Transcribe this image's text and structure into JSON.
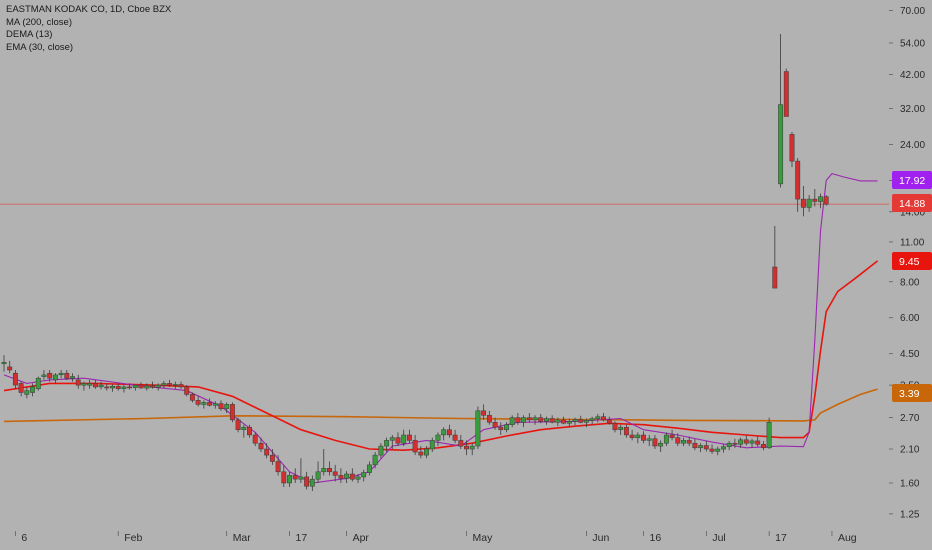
{
  "legend": {
    "title": "EASTMAN KODAK CO, 1D, Cboe BZX",
    "ma": "MA (200, close)",
    "dema": "DEMA (13)",
    "ema": "EMA (30, close)"
  },
  "colors": {
    "background": "#b2b2b2",
    "up": "#3a9a3e",
    "down": "#d32f2f",
    "ma": "#c8660a",
    "dema": "#9c27b0",
    "ema": "#e8150e",
    "last_price": "#e53935"
  },
  "chart_data": {
    "type": "candlestick",
    "scale": "log",
    "ylim": [
      1.2,
      72
    ],
    "y_ticks": [
      "70.00",
      "54.00",
      "42.00",
      "32.00",
      "24.00",
      "18.00",
      "14.00",
      "11.00",
      "8.00",
      "6.00",
      "4.50",
      "3.50",
      "2.70",
      "2.10",
      "1.60",
      "1.25"
    ],
    "x_ticks": [
      {
        "label": "6",
        "index": 2
      },
      {
        "label": "Feb",
        "index": 20
      },
      {
        "label": "Mar",
        "index": 39
      },
      {
        "label": "17",
        "index": 50
      },
      {
        "label": "Apr",
        "index": 60
      },
      {
        "label": "May",
        "index": 81
      },
      {
        "label": "Jun",
        "index": 102
      },
      {
        "label": "16",
        "index": 112
      },
      {
        "label": "Jul",
        "index": 123
      },
      {
        "label": "17",
        "index": 134
      },
      {
        "label": "Aug",
        "index": 145
      }
    ],
    "candles": [
      [
        4.15,
        4.45,
        3.9,
        4.2
      ],
      [
        4.05,
        4.25,
        3.85,
        3.95
      ],
      [
        3.85,
        3.95,
        3.4,
        3.5
      ],
      [
        3.55,
        3.6,
        3.2,
        3.3
      ],
      [
        3.25,
        3.45,
        3.15,
        3.35
      ],
      [
        3.3,
        3.55,
        3.2,
        3.45
      ],
      [
        3.4,
        3.75,
        3.35,
        3.7
      ],
      [
        3.75,
        3.95,
        3.65,
        3.8
      ],
      [
        3.85,
        3.95,
        3.6,
        3.7
      ],
      [
        3.65,
        3.85,
        3.55,
        3.8
      ],
      [
        3.8,
        3.95,
        3.7,
        3.85
      ],
      [
        3.85,
        3.95,
        3.65,
        3.7
      ],
      [
        3.7,
        3.85,
        3.6,
        3.75
      ],
      [
        3.65,
        3.8,
        3.4,
        3.5
      ],
      [
        3.5,
        3.6,
        3.35,
        3.55
      ],
      [
        3.5,
        3.65,
        3.4,
        3.55
      ],
      [
        3.55,
        3.65,
        3.4,
        3.45
      ],
      [
        3.45,
        3.6,
        3.38,
        3.5
      ],
      [
        3.45,
        3.55,
        3.35,
        3.42
      ],
      [
        3.42,
        3.52,
        3.32,
        3.47
      ],
      [
        3.47,
        3.55,
        3.35,
        3.4
      ],
      [
        3.4,
        3.5,
        3.3,
        3.45
      ],
      [
        3.45,
        3.55,
        3.38,
        3.43
      ],
      [
        3.43,
        3.52,
        3.35,
        3.5
      ],
      [
        3.5,
        3.58,
        3.4,
        3.42
      ],
      [
        3.42,
        3.55,
        3.35,
        3.48
      ],
      [
        3.48,
        3.6,
        3.4,
        3.44
      ],
      [
        3.44,
        3.55,
        3.35,
        3.5
      ],
      [
        3.5,
        3.62,
        3.42,
        3.55
      ],
      [
        3.55,
        3.65,
        3.45,
        3.5
      ],
      [
        3.5,
        3.6,
        3.4,
        3.52
      ],
      [
        3.52,
        3.6,
        3.4,
        3.45
      ],
      [
        3.45,
        3.5,
        3.2,
        3.25
      ],
      [
        3.25,
        3.3,
        3.05,
        3.1
      ],
      [
        3.1,
        3.2,
        2.95,
        3.0
      ],
      [
        3.0,
        3.1,
        2.9,
        3.05
      ],
      [
        3.05,
        3.15,
        2.95,
        2.98
      ],
      [
        2.98,
        3.08,
        2.9,
        3.02
      ],
      [
        3.02,
        3.1,
        2.85,
        2.9
      ],
      [
        2.9,
        3.05,
        2.8,
        3.0
      ],
      [
        3.0,
        3.05,
        2.6,
        2.65
      ],
      [
        2.65,
        2.7,
        2.4,
        2.45
      ],
      [
        2.45,
        2.55,
        2.3,
        2.5
      ],
      [
        2.5,
        2.55,
        2.3,
        2.35
      ],
      [
        2.35,
        2.4,
        2.15,
        2.2
      ],
      [
        2.2,
        2.3,
        2.05,
        2.1
      ],
      [
        2.1,
        2.2,
        1.95,
        2.0
      ],
      [
        2.0,
        2.1,
        1.85,
        1.9
      ],
      [
        1.9,
        2.0,
        1.7,
        1.75
      ],
      [
        1.75,
        1.85,
        1.55,
        1.6
      ],
      [
        1.6,
        1.75,
        1.55,
        1.7
      ],
      [
        1.7,
        1.8,
        1.6,
        1.65
      ],
      [
        1.65,
        1.95,
        1.6,
        1.68
      ],
      [
        1.68,
        1.75,
        1.52,
        1.56
      ],
      [
        1.56,
        1.7,
        1.5,
        1.65
      ],
      [
        1.65,
        1.9,
        1.6,
        1.75
      ],
      [
        1.75,
        2.1,
        1.7,
        1.8
      ],
      [
        1.8,
        1.9,
        1.7,
        1.75
      ],
      [
        1.75,
        1.85,
        1.62,
        1.7
      ],
      [
        1.7,
        1.8,
        1.6,
        1.66
      ],
      [
        1.66,
        1.76,
        1.6,
        1.72
      ],
      [
        1.72,
        1.8,
        1.62,
        1.65
      ],
      [
        1.65,
        1.72,
        1.6,
        1.68
      ],
      [
        1.68,
        1.78,
        1.62,
        1.74
      ],
      [
        1.74,
        1.9,
        1.7,
        1.85
      ],
      [
        1.85,
        2.05,
        1.8,
        2.0
      ],
      [
        2.0,
        2.2,
        1.95,
        2.15
      ],
      [
        2.15,
        2.3,
        2.05,
        2.25
      ],
      [
        2.25,
        2.35,
        2.1,
        2.3
      ],
      [
        2.3,
        2.4,
        2.15,
        2.2
      ],
      [
        2.2,
        2.45,
        2.15,
        2.35
      ],
      [
        2.35,
        2.45,
        2.2,
        2.25
      ],
      [
        2.25,
        2.35,
        2.0,
        2.05
      ],
      [
        2.05,
        2.15,
        1.95,
        2.0
      ],
      [
        2.0,
        2.15,
        1.95,
        2.1
      ],
      [
        2.1,
        2.3,
        2.05,
        2.25
      ],
      [
        2.25,
        2.4,
        2.15,
        2.35
      ],
      [
        2.35,
        2.5,
        2.25,
        2.45
      ],
      [
        2.45,
        2.55,
        2.3,
        2.35
      ],
      [
        2.35,
        2.45,
        2.2,
        2.25
      ],
      [
        2.25,
        2.35,
        2.1,
        2.15
      ],
      [
        2.15,
        2.25,
        2.0,
        2.1
      ],
      [
        2.1,
        2.2,
        2.0,
        2.15
      ],
      [
        2.15,
        2.95,
        2.1,
        2.85
      ],
      [
        2.85,
        3.0,
        2.65,
        2.75
      ],
      [
        2.75,
        2.85,
        2.55,
        2.6
      ],
      [
        2.6,
        2.7,
        2.45,
        2.5
      ],
      [
        2.5,
        2.6,
        2.35,
        2.45
      ],
      [
        2.45,
        2.6,
        2.4,
        2.55
      ],
      [
        2.55,
        2.75,
        2.5,
        2.7
      ],
      [
        2.7,
        2.8,
        2.55,
        2.6
      ],
      [
        2.6,
        2.75,
        2.5,
        2.7
      ],
      [
        2.7,
        2.8,
        2.6,
        2.65
      ],
      [
        2.65,
        2.75,
        2.55,
        2.7
      ],
      [
        2.7,
        2.78,
        2.58,
        2.62
      ],
      [
        2.62,
        2.72,
        2.55,
        2.68
      ],
      [
        2.68,
        2.75,
        2.58,
        2.6
      ],
      [
        2.6,
        2.7,
        2.52,
        2.65
      ],
      [
        2.65,
        2.72,
        2.56,
        2.58
      ],
      [
        2.58,
        2.68,
        2.5,
        2.62
      ],
      [
        2.62,
        2.7,
        2.54,
        2.66
      ],
      [
        2.66,
        2.74,
        2.58,
        2.6
      ],
      [
        2.6,
        2.68,
        2.5,
        2.64
      ],
      [
        2.64,
        2.72,
        2.56,
        2.68
      ],
      [
        2.68,
        2.78,
        2.6,
        2.72
      ],
      [
        2.72,
        2.8,
        2.62,
        2.65
      ],
      [
        2.65,
        2.72,
        2.55,
        2.58
      ],
      [
        2.58,
        2.62,
        2.4,
        2.45
      ],
      [
        2.45,
        2.55,
        2.35,
        2.5
      ],
      [
        2.5,
        2.55,
        2.3,
        2.35
      ],
      [
        2.35,
        2.45,
        2.25,
        2.3
      ],
      [
        2.3,
        2.4,
        2.2,
        2.35
      ],
      [
        2.35,
        2.42,
        2.2,
        2.25
      ],
      [
        2.25,
        2.35,
        2.15,
        2.28
      ],
      [
        2.28,
        2.35,
        2.1,
        2.15
      ],
      [
        2.15,
        2.25,
        2.05,
        2.2
      ],
      [
        2.2,
        2.4,
        2.15,
        2.35
      ],
      [
        2.35,
        2.45,
        2.25,
        2.3
      ],
      [
        2.3,
        2.38,
        2.15,
        2.2
      ],
      [
        2.2,
        2.3,
        2.15,
        2.25
      ],
      [
        2.25,
        2.32,
        2.15,
        2.2
      ],
      [
        2.2,
        2.28,
        2.08,
        2.12
      ],
      [
        2.12,
        2.2,
        2.05,
        2.16
      ],
      [
        2.16,
        2.24,
        2.06,
        2.1
      ],
      [
        2.1,
        2.18,
        2.02,
        2.06
      ],
      [
        2.06,
        2.14,
        2.0,
        2.1
      ],
      [
        2.1,
        2.18,
        2.04,
        2.14
      ],
      [
        2.14,
        2.24,
        2.08,
        2.2
      ],
      [
        2.2,
        2.28,
        2.12,
        2.18
      ],
      [
        2.18,
        2.3,
        2.12,
        2.26
      ],
      [
        2.26,
        2.34,
        2.16,
        2.2
      ],
      [
        2.2,
        2.28,
        2.12,
        2.24
      ],
      [
        2.24,
        2.32,
        2.14,
        2.18
      ],
      [
        2.18,
        2.24,
        2.08,
        2.12
      ],
      [
        2.12,
        2.7,
        2.1,
        2.6
      ],
      [
        9.0,
        12.5,
        7.8,
        7.6
      ],
      [
        17.5,
        58.0,
        17.0,
        33.0
      ],
      [
        43.0,
        44.0,
        30.0,
        30.0
      ],
      [
        26.0,
        26.5,
        20.0,
        21.0
      ],
      [
        21.0,
        21.5,
        14.0,
        15.5
      ],
      [
        15.5,
        17.2,
        13.5,
        14.5
      ],
      [
        14.5,
        16.0,
        14.0,
        15.5
      ],
      [
        15.5,
        16.8,
        14.6,
        15.2
      ],
      [
        15.2,
        16.2,
        14.4,
        15.8
      ],
      [
        15.8,
        16.0,
        14.7,
        14.88
      ]
    ],
    "series": [
      {
        "name": "MA (200, close)",
        "points": [
          [
            0,
            2.62
          ],
          [
            25,
            2.68
          ],
          [
            40,
            2.74
          ],
          [
            60,
            2.72
          ],
          [
            80,
            2.68
          ],
          [
            100,
            2.66
          ],
          [
            120,
            2.64
          ],
          [
            140,
            2.63
          ],
          [
            142,
            2.65
          ],
          [
            143,
            2.8
          ],
          [
            146,
            3.0
          ],
          [
            150,
            3.25
          ],
          [
            153,
            3.39
          ]
        ]
      },
      {
        "name": "EMA (30, close)",
        "points": [
          [
            0,
            3.35
          ],
          [
            8,
            3.55
          ],
          [
            16,
            3.55
          ],
          [
            26,
            3.5
          ],
          [
            34,
            3.45
          ],
          [
            40,
            3.2
          ],
          [
            46,
            2.8
          ],
          [
            52,
            2.45
          ],
          [
            58,
            2.25
          ],
          [
            64,
            2.1
          ],
          [
            70,
            2.08
          ],
          [
            76,
            2.12
          ],
          [
            82,
            2.2
          ],
          [
            88,
            2.33
          ],
          [
            94,
            2.45
          ],
          [
            100,
            2.52
          ],
          [
            106,
            2.58
          ],
          [
            112,
            2.55
          ],
          [
            118,
            2.48
          ],
          [
            124,
            2.4
          ],
          [
            130,
            2.35
          ],
          [
            136,
            2.3
          ],
          [
            140,
            2.3
          ],
          [
            141,
            2.4
          ],
          [
            142,
            3.2
          ],
          [
            143,
            4.6
          ],
          [
            144,
            6.3
          ],
          [
            146,
            7.4
          ],
          [
            149,
            8.2
          ],
          [
            153,
            9.45
          ]
        ]
      },
      {
        "name": "DEMA (13)",
        "points": [
          [
            0,
            3.8
          ],
          [
            4,
            3.55
          ],
          [
            8,
            3.65
          ],
          [
            14,
            3.7
          ],
          [
            24,
            3.48
          ],
          [
            32,
            3.35
          ],
          [
            38,
            2.95
          ],
          [
            44,
            2.4
          ],
          [
            50,
            1.75
          ],
          [
            54,
            1.6
          ],
          [
            60,
            1.66
          ],
          [
            64,
            1.75
          ],
          [
            68,
            2.15
          ],
          [
            74,
            2.25
          ],
          [
            80,
            2.15
          ],
          [
            84,
            2.45
          ],
          [
            90,
            2.6
          ],
          [
            100,
            2.62
          ],
          [
            108,
            2.68
          ],
          [
            112,
            2.45
          ],
          [
            118,
            2.35
          ],
          [
            124,
            2.22
          ],
          [
            130,
            2.12
          ],
          [
            136,
            2.15
          ],
          [
            140,
            2.14
          ],
          [
            141,
            2.4
          ],
          [
            142,
            5.0
          ],
          [
            143,
            12.0
          ],
          [
            144,
            18.0
          ],
          [
            145,
            19.0
          ],
          [
            147,
            18.5
          ],
          [
            150,
            17.92
          ],
          [
            153,
            17.92
          ]
        ]
      }
    ],
    "last_price": 14.88,
    "last_values": {
      "dema": "17.92",
      "price": "14.88",
      "ema": "9.45",
      "ma": "3.39"
    }
  }
}
